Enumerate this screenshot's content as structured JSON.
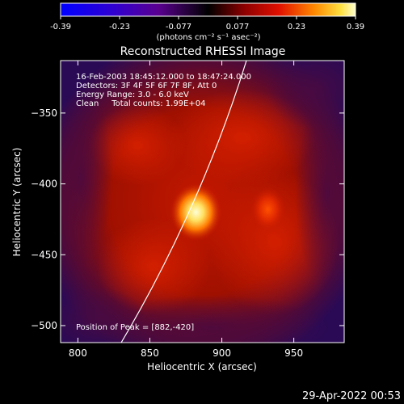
{
  "colorbar": {
    "ticks": [
      "-0.39",
      "-0.23",
      "-0.077",
      "0.077",
      "0.23",
      "0.39"
    ],
    "units": "(photons cm⁻² s⁻¹ asec⁻²)"
  },
  "image": {
    "title": "Reconstructed RHESSI Image",
    "info_lines": [
      "16-Feb-2003 18:45:12.000 to 18:47:24.000",
      "Detectors: 3F 4F 5F 6F 7F 8F, Att 0",
      "Energy Range: 3.0 - 6.0 keV",
      "Clean     Total counts: 1.99E+04"
    ],
    "peak_label": "Position of Peak = [882,-420]",
    "x_label": "Heliocentric X (arcsec)",
    "y_label": "Heliocentric Y (arcsec)",
    "x_ticks": [
      "800",
      "850",
      "900",
      "950"
    ],
    "y_ticks": [
      "−350",
      "−400",
      "−450",
      "−500"
    ],
    "x_range": [
      788,
      985
    ],
    "y_range": [
      -512,
      -313
    ],
    "peak": [
      882,
      -420
    ],
    "second_source": [
      932,
      -418
    ],
    "colors": {
      "limb": "#ffffff",
      "background": "#000000"
    }
  },
  "footer": {
    "timestamp": "29-Apr-2022 00:53"
  }
}
